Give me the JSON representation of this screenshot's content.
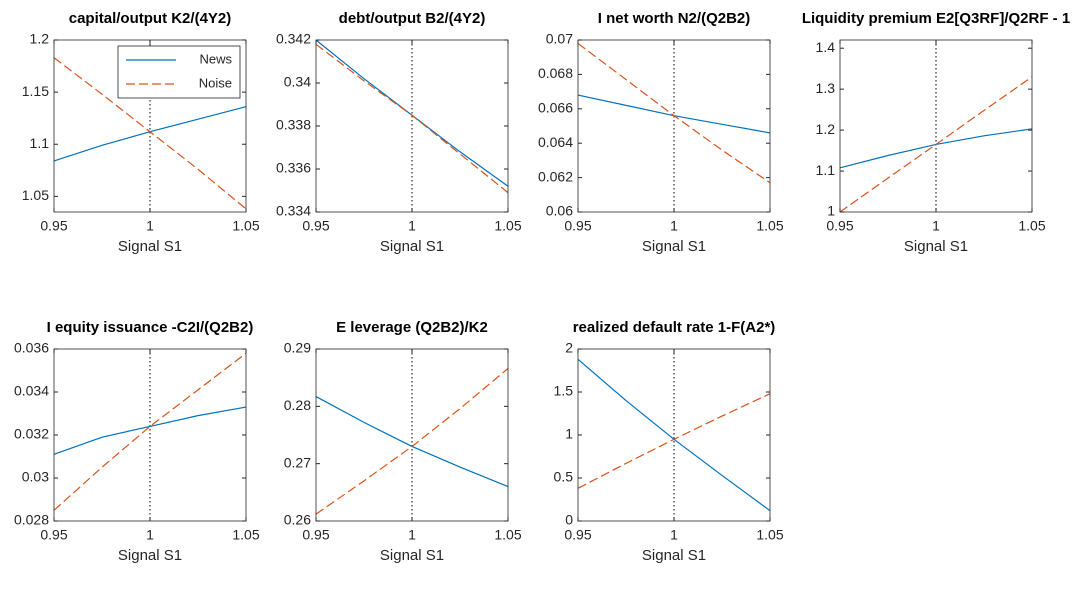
{
  "chart_data": [
    {
      "type": "line",
      "title": "capital/output K2/(4Y2)",
      "xlabel": "Signal S1",
      "x": [
        0.95,
        0.975,
        1,
        1.025,
        1.05
      ],
      "xlim": [
        0.95,
        1.05
      ],
      "xticks": [
        0.95,
        1,
        1.05
      ],
      "ylim": [
        1.035,
        1.2
      ],
      "yticks": [
        1.05,
        1.1,
        1.15,
        1.2
      ],
      "vline": 1,
      "legend": "upper right",
      "series": [
        {
          "name": "News",
          "color": "#0072bd",
          "values": [
            1.084,
            1.099,
            1.112,
            1.124,
            1.136
          ]
        },
        {
          "name": "Noise",
          "color": "#d95319",
          "dashed": true,
          "values": [
            1.183,
            1.148,
            1.112,
            1.076,
            1.038
          ]
        }
      ]
    },
    {
      "type": "line",
      "title": "debt/output B2/(4Y2)",
      "xlabel": "Signal S1",
      "x": [
        0.95,
        0.975,
        1,
        1.025,
        1.05
      ],
      "xlim": [
        0.95,
        1.05
      ],
      "xticks": [
        0.95,
        1,
        1.05
      ],
      "ylim": [
        0.334,
        0.342
      ],
      "yticks": [
        0.334,
        0.336,
        0.338,
        0.34,
        0.342
      ],
      "vline": 1,
      "series": [
        {
          "color": "#0072bd",
          "values": [
            0.342,
            0.3402,
            0.3385,
            0.3368,
            0.3352
          ]
        },
        {
          "color": "#d95319",
          "dashed": true,
          "values": [
            0.3418,
            0.3401,
            0.3385,
            0.3367,
            0.3349
          ]
        }
      ]
    },
    {
      "type": "line",
      "title": "I net worth N2/(Q2B2)",
      "xlabel": "Signal S1",
      "x": [
        0.95,
        0.975,
        1,
        1.025,
        1.05
      ],
      "xlim": [
        0.95,
        1.05
      ],
      "xticks": [
        0.95,
        1,
        1.05
      ],
      "ylim": [
        0.06,
        0.07
      ],
      "yticks": [
        0.06,
        0.062,
        0.064,
        0.066,
        0.068,
        0.07
      ],
      "vline": 1,
      "series": [
        {
          "color": "#0072bd",
          "values": [
            0.0668,
            0.0662,
            0.0656,
            0.0651,
            0.0646
          ]
        },
        {
          "color": "#d95319",
          "dashed": true,
          "values": [
            0.0698,
            0.0677,
            0.0656,
            0.0636,
            0.0617
          ]
        }
      ]
    },
    {
      "type": "line",
      "title": "Liquidity premium E2[Q3RF]/Q2RF - 1",
      "xlabel": "Signal S1",
      "x": [
        0.95,
        0.975,
        1,
        1.025,
        1.05
      ],
      "xlim": [
        0.95,
        1.05
      ],
      "xticks": [
        0.95,
        1,
        1.05
      ],
      "ylim": [
        1,
        1.42
      ],
      "yticks": [
        1,
        1.1,
        1.2,
        1.3,
        1.4
      ],
      "vline": 1,
      "series": [
        {
          "color": "#0072bd",
          "values": [
            1.108,
            1.138,
            1.165,
            1.186,
            1.203
          ]
        },
        {
          "color": "#d95319",
          "dashed": true,
          "values": [
            1.0,
            1.083,
            1.165,
            1.248,
            1.33
          ]
        }
      ]
    },
    {
      "type": "line",
      "title": "I equity issuance -C2I/(Q2B2)",
      "xlabel": "Signal S1",
      "x": [
        0.95,
        0.975,
        1,
        1.025,
        1.05
      ],
      "xlim": [
        0.95,
        1.05
      ],
      "xticks": [
        0.95,
        1,
        1.05
      ],
      "ylim": [
        0.028,
        0.036
      ],
      "yticks": [
        0.028,
        0.03,
        0.032,
        0.034,
        0.036
      ],
      "vline": 1,
      "series": [
        {
          "color": "#0072bd",
          "values": [
            0.0311,
            0.0319,
            0.0324,
            0.0329,
            0.0333
          ]
        },
        {
          "color": "#d95319",
          "dashed": true,
          "values": [
            0.0285,
            0.0305,
            0.0324,
            0.0341,
            0.0358
          ]
        }
      ]
    },
    {
      "type": "line",
      "title": "E leverage (Q2B2)/K2",
      "xlabel": "Signal S1",
      "x": [
        0.95,
        0.975,
        1,
        1.025,
        1.05
      ],
      "xlim": [
        0.95,
        1.05
      ],
      "xticks": [
        0.95,
        1,
        1.05
      ],
      "ylim": [
        0.26,
        0.29
      ],
      "yticks": [
        0.26,
        0.27,
        0.28,
        0.29
      ],
      "vline": 1,
      "series": [
        {
          "color": "#0072bd",
          "values": [
            0.2817,
            0.2772,
            0.273,
            0.2694,
            0.266
          ]
        },
        {
          "color": "#d95319",
          "dashed": true,
          "values": [
            0.2612,
            0.267,
            0.273,
            0.2796,
            0.2866
          ]
        }
      ]
    },
    {
      "type": "line",
      "title": "realized default rate 1-F(A2*)",
      "xlabel": "Signal S1",
      "x": [
        0.95,
        0.975,
        1,
        1.025,
        1.05
      ],
      "xlim": [
        0.95,
        1.05
      ],
      "xticks": [
        0.95,
        1,
        1.05
      ],
      "ylim": [
        0,
        2
      ],
      "yticks": [
        0,
        0.5,
        1,
        1.5,
        2
      ],
      "vline": 1,
      "series": [
        {
          "color": "#0072bd",
          "values": [
            1.88,
            1.4,
            0.95,
            0.53,
            0.12
          ]
        },
        {
          "color": "#d95319",
          "dashed": true,
          "values": [
            0.38,
            0.67,
            0.95,
            1.22,
            1.48
          ]
        }
      ]
    }
  ]
}
